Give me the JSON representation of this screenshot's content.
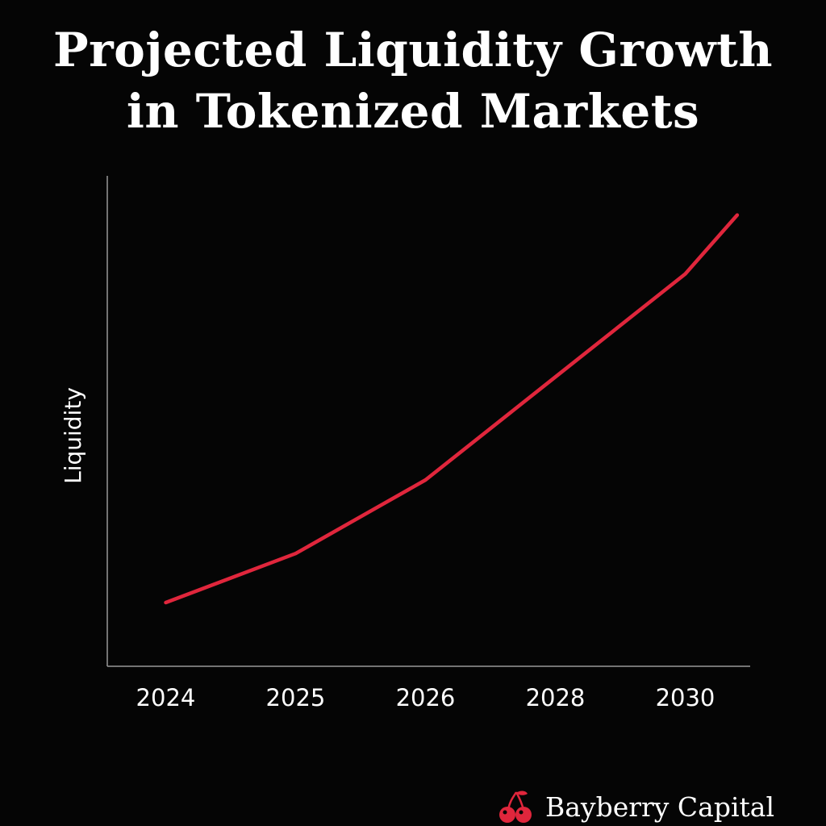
{
  "title_lines": [
    "Projected Liquidity Growth",
    "in Tokenized Markets"
  ],
  "brand": {
    "name": "Bayberry Capital",
    "icon": "cherry-icon"
  },
  "colors": {
    "background": "#050505",
    "line": "#e0263c",
    "axis": "#9a9a9a",
    "text": "#ffffff"
  },
  "chart_data": {
    "type": "line",
    "title": "Projected Liquidity Growth in Tokenized Markets",
    "xlabel": "",
    "ylabel": "Liquidity",
    "categories": [
      "2024",
      "2025",
      "2026",
      "2028",
      "2030"
    ],
    "series": [
      {
        "name": "Liquidity",
        "x": [
          0,
          1,
          2,
          3,
          4,
          4.4
        ],
        "values": [
          13,
          23,
          38,
          59,
          80,
          92
        ]
      }
    ],
    "ylim": [
      0,
      100
    ],
    "xlim": [
      -0.45,
      4.5
    ],
    "grid": false,
    "legend": "none"
  }
}
